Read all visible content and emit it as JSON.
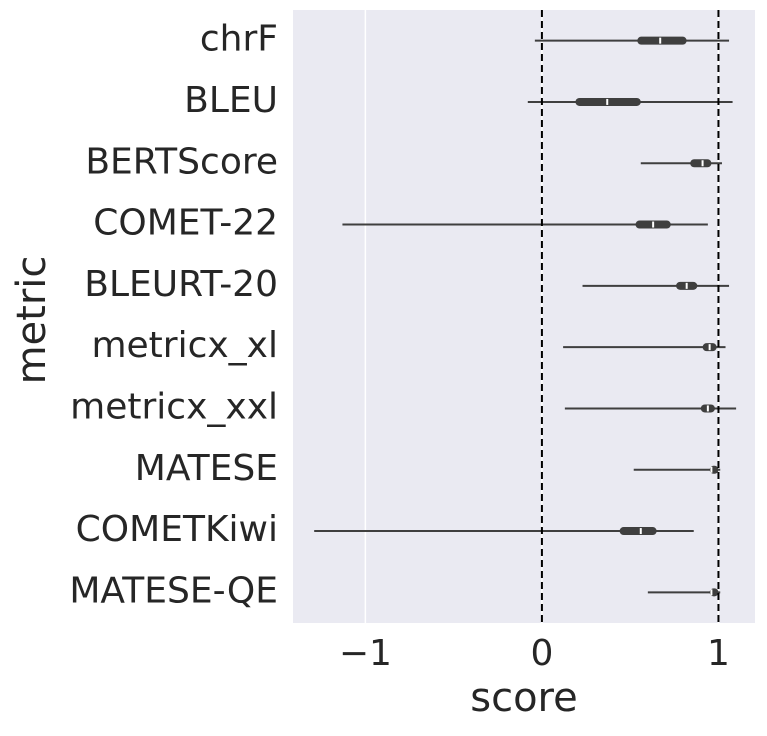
{
  "chart_data": {
    "type": "violin",
    "x_label": "score",
    "y_label": "metric",
    "categories": [
      "chrF",
      "BLEU",
      "BERTScore",
      "COMET-22",
      "BLEURT-20",
      "metricx_xl",
      "metricx_xxl",
      "MATESE",
      "COMETKiwi",
      "MATESE-QE"
    ],
    "min": [
      -0.04,
      -0.08,
      0.56,
      -1.13,
      0.23,
      0.12,
      0.13,
      0.52,
      -1.29,
      0.6
    ],
    "q1": [
      0.54,
      0.19,
      0.84,
      0.53,
      0.76,
      0.91,
      0.9,
      0.95,
      0.44,
      0.95
    ],
    "median": [
      0.67,
      0.37,
      0.91,
      0.63,
      0.82,
      0.95,
      0.94,
      0.96,
      0.56,
      0.96
    ],
    "q3": [
      0.82,
      0.56,
      0.96,
      0.73,
      0.88,
      0.99,
      0.98,
      1.0,
      0.65,
      1.0
    ],
    "max": [
      1.06,
      1.08,
      1.02,
      0.94,
      1.06,
      1.04,
      1.1,
      1.01,
      0.86,
      1.01
    ],
    "color": "#3f3f3f",
    "reference_lines": [
      0,
      1
    ],
    "xlim": [
      -1.41,
      1.207
    ],
    "xticks": [
      {
        "value": -1,
        "label": "−1"
      },
      0,
      1
    ],
    "grid": true
  }
}
